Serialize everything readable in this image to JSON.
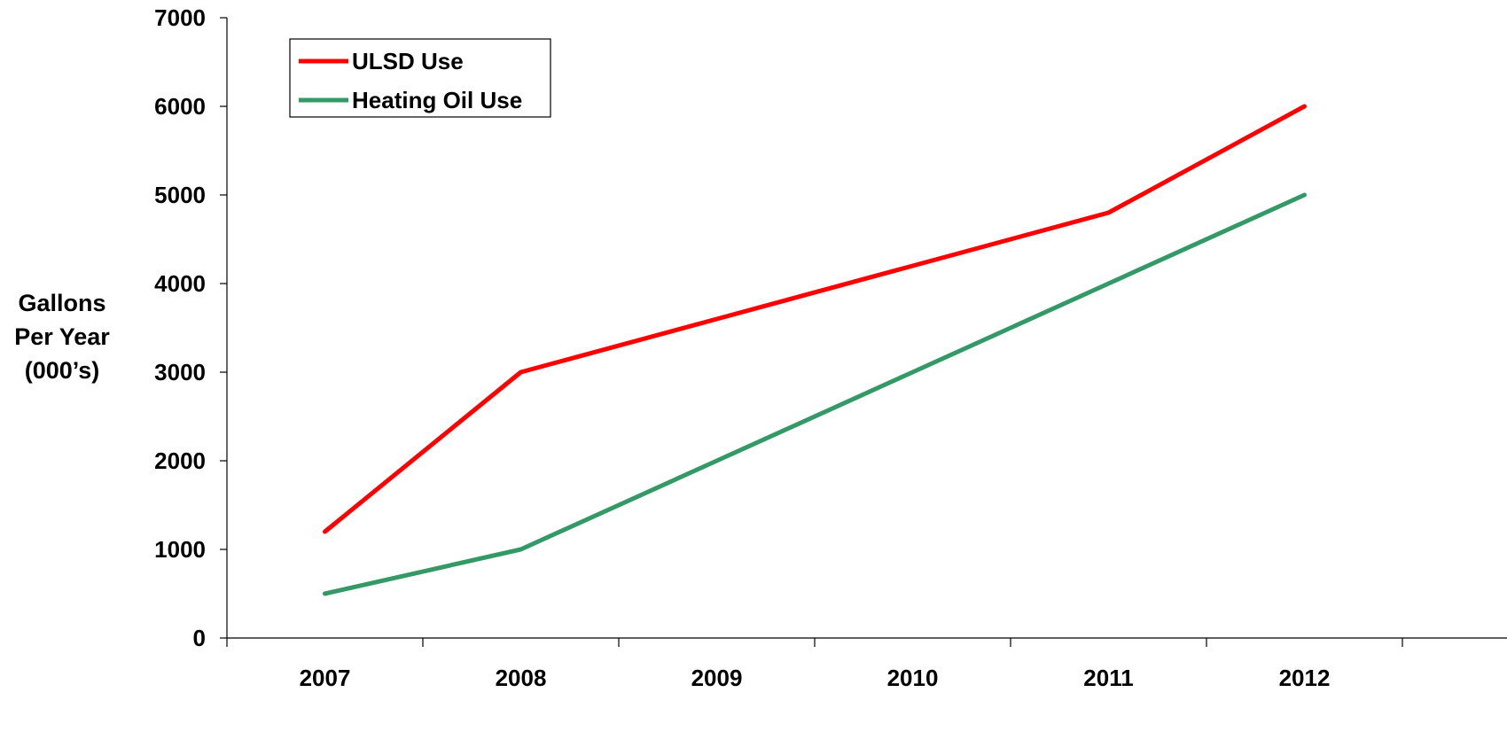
{
  "chart_data": {
    "type": "line",
    "categories": [
      "2007",
      "2008",
      "2009",
      "2010",
      "2011",
      "2012"
    ],
    "series": [
      {
        "name": "ULSD Use",
        "color": "#ff0000",
        "values": [
          1200,
          3000,
          3600,
          4200,
          4800,
          6000
        ]
      },
      {
        "name": "Heating Oil Use",
        "color": "#339966",
        "values": [
          500,
          1000,
          2000,
          3000,
          4000,
          5000
        ]
      }
    ],
    "ylabel_lines": [
      "Gallons",
      "Per Year",
      "(000’s)"
    ],
    "ylim": [
      0,
      7000
    ],
    "yticks": [
      0,
      1000,
      2000,
      3000,
      4000,
      5000,
      6000,
      7000
    ],
    "grid": false,
    "legend_position": "top-left"
  }
}
